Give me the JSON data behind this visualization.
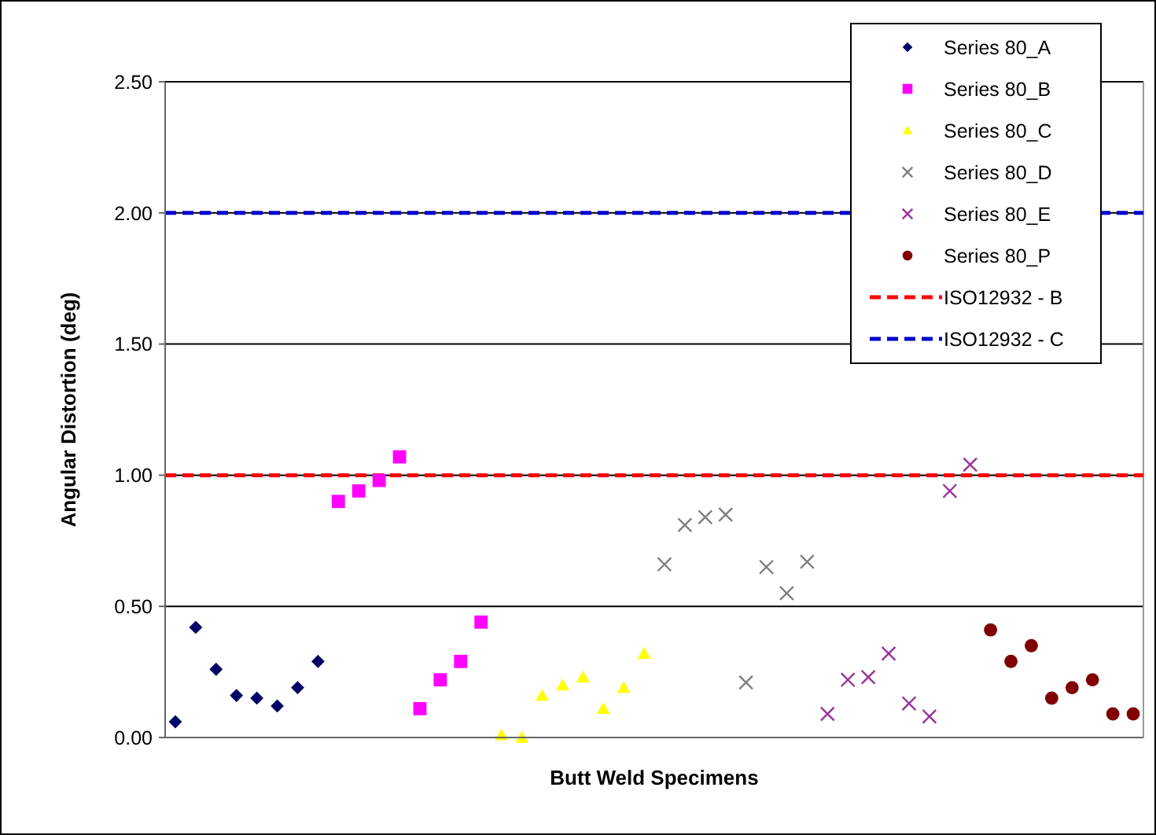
{
  "chart_data": {
    "type": "scatter",
    "xlabel": "Butt Weld Specimens",
    "ylabel": "Angular Distortion (deg)",
    "categories": [
      null,
      null,
      null,
      null,
      null,
      null,
      null,
      null,
      null,
      null,
      null,
      null,
      null,
      null,
      null,
      null,
      null,
      null,
      null,
      null,
      null,
      null,
      null,
      null,
      null,
      null,
      null,
      null,
      null,
      null,
      null,
      null,
      null,
      null,
      null,
      null,
      null,
      null,
      null,
      null,
      null,
      null,
      null,
      null,
      null,
      null,
      null,
      null
    ],
    "series": [
      {
        "name": "Series 80_A",
        "color": "#000066",
        "marker": "diamond",
        "values": [
          0.06,
          0.42,
          0.26,
          0.16,
          0.15,
          0.12,
          0.19,
          0.29,
          null,
          null,
          null,
          null,
          null,
          null,
          null,
          null,
          null,
          null,
          null,
          null,
          null,
          null,
          null,
          null,
          null,
          null,
          null,
          null,
          null,
          null,
          null,
          null,
          null,
          null,
          null,
          null,
          null,
          null,
          null,
          null,
          null,
          null,
          null,
          null,
          null,
          null,
          null,
          null
        ]
      },
      {
        "name": "Series 80_B",
        "color": "#ff00ff",
        "marker": "square",
        "values": [
          null,
          null,
          null,
          null,
          null,
          null,
          null,
          null,
          0.9,
          0.94,
          0.98,
          1.07,
          0.11,
          0.22,
          0.29,
          0.44,
          null,
          null,
          null,
          null,
          null,
          null,
          null,
          null,
          null,
          null,
          null,
          null,
          null,
          null,
          null,
          null,
          null,
          null,
          null,
          null,
          null,
          null,
          null,
          null,
          null,
          null,
          null,
          null,
          null,
          null,
          null,
          null
        ]
      },
      {
        "name": "Series 80_C",
        "color": "#ffff00",
        "marker": "triangle",
        "values": [
          null,
          null,
          null,
          null,
          null,
          null,
          null,
          null,
          null,
          null,
          null,
          null,
          null,
          null,
          null,
          null,
          0.01,
          0.0,
          0.16,
          0.2,
          0.23,
          0.11,
          0.19,
          0.32,
          null,
          null,
          null,
          null,
          null,
          null,
          null,
          null,
          null,
          null,
          null,
          null,
          null,
          null,
          null,
          null,
          null,
          null,
          null,
          null,
          null,
          null,
          null,
          null
        ]
      },
      {
        "name": "Series 80_D",
        "color": "#808080",
        "marker": "cross",
        "values": [
          null,
          null,
          null,
          null,
          null,
          null,
          null,
          null,
          null,
          null,
          null,
          null,
          null,
          null,
          null,
          null,
          null,
          null,
          null,
          null,
          null,
          null,
          null,
          null,
          0.66,
          0.81,
          0.84,
          0.85,
          0.21,
          0.65,
          0.55,
          0.67,
          null,
          null,
          null,
          null,
          null,
          null,
          null,
          null,
          null,
          null,
          null,
          null,
          null,
          null,
          null,
          null
        ]
      },
      {
        "name": "Series 80_E",
        "color": "#993399",
        "marker": "cross",
        "values": [
          null,
          null,
          null,
          null,
          null,
          null,
          null,
          null,
          null,
          null,
          null,
          null,
          null,
          null,
          null,
          null,
          null,
          null,
          null,
          null,
          null,
          null,
          null,
          null,
          null,
          null,
          null,
          null,
          null,
          null,
          null,
          null,
          0.09,
          0.22,
          0.23,
          0.32,
          0.13,
          0.08,
          0.94,
          1.04,
          null,
          null,
          null,
          null,
          null,
          null,
          null,
          null
        ]
      },
      {
        "name": "Series 80_P",
        "color": "#800000",
        "marker": "circle",
        "values": [
          null,
          null,
          null,
          null,
          null,
          null,
          null,
          null,
          null,
          null,
          null,
          null,
          null,
          null,
          null,
          null,
          null,
          null,
          null,
          null,
          null,
          null,
          null,
          null,
          null,
          null,
          null,
          null,
          null,
          null,
          null,
          null,
          null,
          null,
          null,
          null,
          null,
          null,
          null,
          null,
          0.41,
          0.29,
          0.35,
          0.15,
          0.19,
          0.22,
          0.09,
          0.09
        ]
      }
    ],
    "ref_lines": [
      {
        "axis": "y",
        "value": 1,
        "label": "ISO12932 - B",
        "color": "#ff0000",
        "line_style": "dashed"
      },
      {
        "axis": "y",
        "value": 2,
        "label": "ISO12932 - C",
        "color": "#0000cc",
        "line_style": "dashed"
      }
    ],
    "ylim": [
      0,
      2.5
    ],
    "yticks": [
      {
        "value": 0,
        "label": "0.00"
      },
      {
        "value": 0.5,
        "label": "0.50"
      },
      {
        "value": 1,
        "label": "1.00"
      },
      {
        "value": 1.5,
        "label": "1.50"
      },
      {
        "value": 2,
        "label": "2.00"
      },
      {
        "value": 2.5,
        "label": "2.50"
      }
    ],
    "grid": "y",
    "legend": "top right"
  }
}
